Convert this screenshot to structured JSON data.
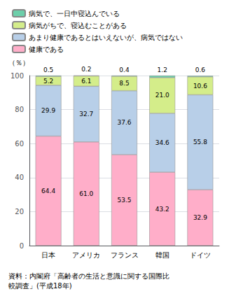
{
  "chart_data": {
    "type": "bar",
    "stacked": true,
    "data_labels": true,
    "grid": true,
    "legend": "top",
    "ylabel": "（％）",
    "note": "資料：内閣府「高齢者の生活と意識に関する国際比\n較調査」(平成18年)",
    "categories": [
      "日本",
      "アメリカ",
      "フランス",
      "韓国",
      "ドイツ"
    ],
    "ylim": [
      0,
      100
    ],
    "yticks": [
      0,
      20,
      40,
      60,
      80,
      100
    ],
    "series": [
      {
        "name": "健康である",
        "color": "#ffaec9",
        "values": [
          64.4,
          61.0,
          53.5,
          43.2,
          32.9
        ],
        "value_labels": [
          "64.4",
          "61.0",
          "53.5",
          "43.2",
          "32.9"
        ]
      },
      {
        "name": "あまり健康であるとはいえないが、病気ではない",
        "color": "#b8cfe8",
        "values": [
          29.9,
          32.7,
          37.6,
          34.6,
          55.8
        ],
        "value_labels": [
          "29.9",
          "32.7",
          "37.6",
          "34.6",
          "55.8"
        ]
      },
      {
        "name": "病気がちで、寝込むことがある",
        "color": "#d4ed8a",
        "values": [
          5.2,
          6.1,
          8.5,
          21.0,
          10.6
        ],
        "value_labels": [
          "5.2",
          "6.1",
          "8.5",
          "21.0",
          "10.6"
        ]
      },
      {
        "name": "病気で、一日中寝込んでいる",
        "color": "#6dcfaa",
        "values": [
          0.5,
          0.2,
          0.4,
          1.2,
          0.6
        ],
        "value_labels": [
          "0.5",
          "0.2",
          "0.4",
          "1.2",
          "0.6"
        ]
      }
    ]
  }
}
